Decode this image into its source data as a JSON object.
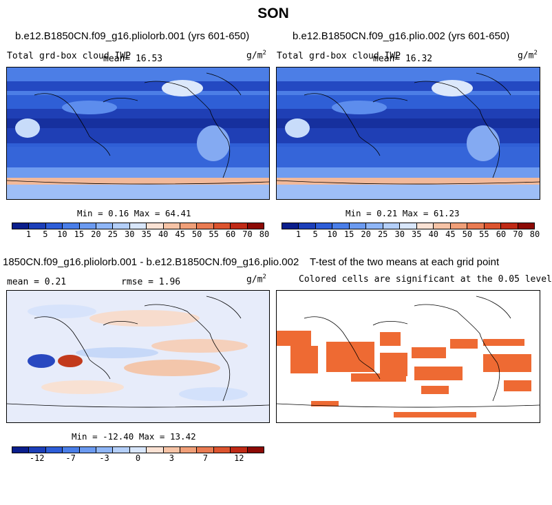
{
  "title": "SON",
  "units": {
    "base": "g/m",
    "exp": "2"
  },
  "cb_abs_colors": [
    "#0a1e8c",
    "#1c3fb9",
    "#2e5ed8",
    "#4a7ee8",
    "#6b9af0",
    "#8fb6f7",
    "#b4cff9",
    "#d8e6fb",
    "#fbe2d4",
    "#f6c3a6",
    "#f09f78",
    "#e97b52",
    "#dc542f",
    "#c02a16",
    "#8c0a05"
  ],
  "cb_abs_labels": [
    "1",
    "5",
    "10",
    "15",
    "20",
    "25",
    "30",
    "35",
    "40",
    "45",
    "50",
    "55",
    "60",
    "70",
    "80"
  ],
  "cb_diff_colors": [
    "#0a1e8c",
    "#1c3fb9",
    "#2e5ed8",
    "#4a7ee8",
    "#6b9af0",
    "#8fb6f7",
    "#b4cff9",
    "#d8e6fb",
    "#fbe2d4",
    "#f6c3a6",
    "#f09f78",
    "#e97b52",
    "#dc542f",
    "#c02a16",
    "#8c0a05"
  ],
  "cb_diff_labels": [
    "-12",
    "-7",
    "-3",
    "0",
    "3",
    "7",
    "12"
  ],
  "panels": {
    "top_left": {
      "case": "b.e12.B1850CN.f09_g16.pliolorb.001 (yrs 601-650)",
      "var": "Total grd-box cloud IWP",
      "mean": "mean=  16.53",
      "minmax": "Min =   0.16 Max =  64.41"
    },
    "top_right": {
      "case": "b.e12.B1850CN.f09_g16.plio.002 (yrs 601-650)",
      "var": "Total grd-box cloud IWP",
      "mean": "mean=  16.32",
      "minmax": "Min =   0.21 Max =  61.23"
    },
    "bottom_left": {
      "case": "1850CN.f09_g16.pliolorb.001 - b.e12.B1850CN.f09_g16.plio.002",
      "mean": "mean =   0.21",
      "rmse": "rmse =   1.96",
      "minmax": "Min = -12.40 Max =  13.42"
    },
    "bottom_right": {
      "case": "T-test of the two means at each grid point",
      "note": "Colored cells are significant at the 0.05 level",
      "sig_color": "#ee6a33"
    }
  },
  "chart_data": [
    {
      "type": "heatmap",
      "title": "b.e12.B1850CN.f09_g16.pliolorb.001 (yrs 601-650)",
      "subtitle": "Total grd-box cloud IWP",
      "mean": 16.53,
      "min": 0.16,
      "max": 64.41,
      "levels": [
        1,
        5,
        10,
        15,
        20,
        25,
        30,
        35,
        40,
        45,
        50,
        55,
        60,
        70,
        80
      ]
    },
    {
      "type": "heatmap",
      "title": "b.e12.B1850CN.f09_g16.plio.002 (yrs 601-650)",
      "subtitle": "Total grd-box cloud IWP",
      "mean": 16.32,
      "min": 0.21,
      "max": 61.23,
      "levels": [
        1,
        5,
        10,
        15,
        20,
        25,
        30,
        35,
        40,
        45,
        50,
        55,
        60,
        70,
        80
      ]
    },
    {
      "type": "heatmap",
      "title": "1850CN.f09_g16.pliolorb.001 - b.e12.B1850CN.f09_g16.plio.002",
      "mean": 0.21,
      "rmse": 1.96,
      "min": -12.4,
      "max": 13.42,
      "levels": [
        -12,
        -7,
        -3,
        0,
        3,
        7,
        12
      ]
    },
    {
      "type": "heatmap",
      "title": "T-test of the two means at each grid point",
      "subtitle": "Colored cells are significant at the 0.05 level"
    }
  ]
}
